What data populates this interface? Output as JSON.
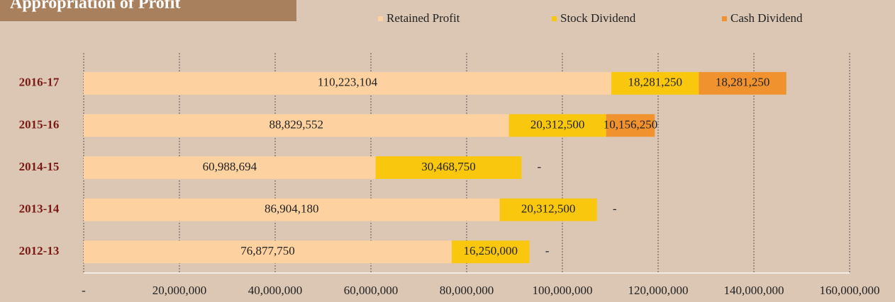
{
  "chart_data": {
    "type": "stacked-barh",
    "title": "Appropriation of Profit",
    "categories": [
      "2016-17",
      "2015-16",
      "2014-15",
      "2013-14",
      "2012-13"
    ],
    "series": [
      {
        "name": "Retained Profit",
        "color": "#fdd2a0",
        "values": [
          110223104,
          88829552,
          60988694,
          86904180,
          76877750
        ],
        "value_labels": [
          "110,223,104",
          "88,829,552",
          "60,988,694",
          "86,904,180",
          "76,877,750"
        ]
      },
      {
        "name": "Stock Dividend",
        "color": "#f9c80e",
        "values": [
          18281250,
          20312500,
          30468750,
          20312500,
          16250000
        ],
        "value_labels": [
          "18,281,250",
          "20,312,500",
          "30,468,750",
          "20,312,500",
          "16,250,000"
        ]
      },
      {
        "name": "Cash Dividend",
        "color": "#f0922e",
        "values": [
          18281250,
          10156250,
          0,
          0,
          0
        ],
        "value_labels": [
          "18,281,250",
          "10,156,250",
          "-",
          "-",
          "-"
        ]
      }
    ],
    "xlim": [
      0,
      160000000
    ],
    "xticks": [
      {
        "value": 0,
        "label": "-"
      },
      {
        "value": 20000000,
        "label": "20,000,000"
      },
      {
        "value": 40000000,
        "label": "40,000,000"
      },
      {
        "value": 60000000,
        "label": "60,000,000"
      },
      {
        "value": 80000000,
        "label": "80,000,000"
      },
      {
        "value": 100000000,
        "label": "100,000,000"
      },
      {
        "value": 120000000,
        "label": "120,000,000"
      },
      {
        "value": 140000000,
        "label": "140,000,000"
      },
      {
        "value": 160000000,
        "label": "160,000,000"
      }
    ],
    "grid": true
  }
}
